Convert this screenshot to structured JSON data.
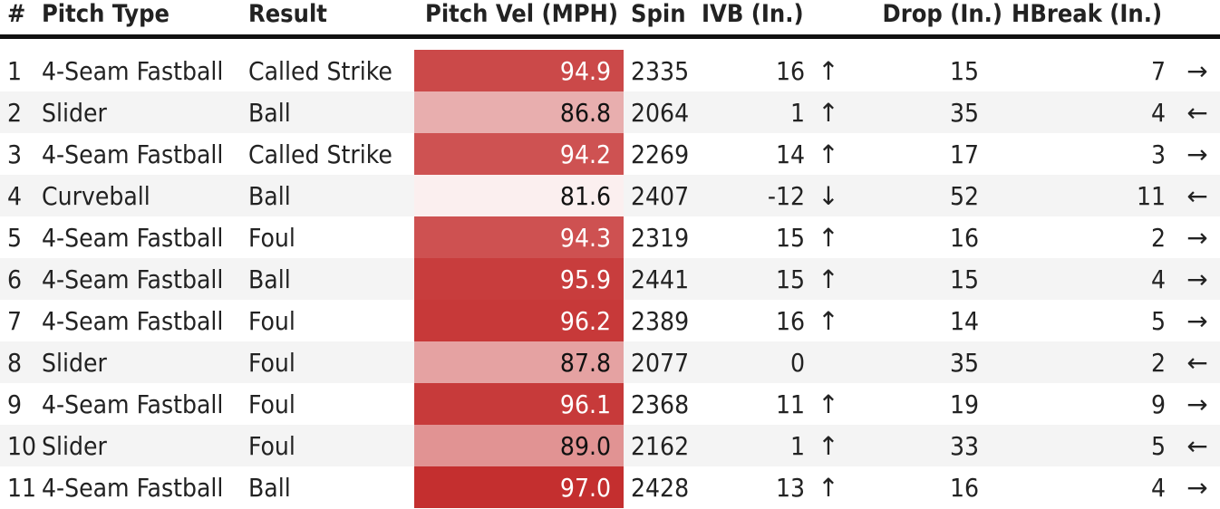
{
  "table": {
    "headers": {
      "num": "#",
      "pitch_type": "Pitch Type",
      "result": "Result",
      "velocity": "Pitch Vel (MPH)",
      "spin": "Spin",
      "ivb": "IVB (In.)",
      "drop": "Drop (In.)",
      "hbreak": "HBreak (In.)"
    },
    "velocity_color_scale": {
      "low_color": "#fbefef",
      "high_color": "#c42f2f"
    },
    "rows": [
      {
        "num": "1",
        "pitch_type": "4-Seam Fastball",
        "result": "Called Strike",
        "velocity": "94.9",
        "spin": "2335",
        "ivb": "16",
        "ivb_arrow": "↑",
        "drop": "15",
        "hbreak": "7",
        "hbreak_arrow": "→"
      },
      {
        "num": "2",
        "pitch_type": "Slider",
        "result": "Ball",
        "velocity": "86.8",
        "spin": "2064",
        "ivb": "1",
        "ivb_arrow": "↑",
        "drop": "35",
        "hbreak": "4",
        "hbreak_arrow": "←"
      },
      {
        "num": "3",
        "pitch_type": "4-Seam Fastball",
        "result": "Called Strike",
        "velocity": "94.2",
        "spin": "2269",
        "ivb": "14",
        "ivb_arrow": "↑",
        "drop": "17",
        "hbreak": "3",
        "hbreak_arrow": "→"
      },
      {
        "num": "4",
        "pitch_type": "Curveball",
        "result": "Ball",
        "velocity": "81.6",
        "spin": "2407",
        "ivb": "-12",
        "ivb_arrow": "↓",
        "drop": "52",
        "hbreak": "11",
        "hbreak_arrow": "←"
      },
      {
        "num": "5",
        "pitch_type": "4-Seam Fastball",
        "result": "Foul",
        "velocity": "94.3",
        "spin": "2319",
        "ivb": "15",
        "ivb_arrow": "↑",
        "drop": "16",
        "hbreak": "2",
        "hbreak_arrow": "→"
      },
      {
        "num": "6",
        "pitch_type": "4-Seam Fastball",
        "result": "Ball",
        "velocity": "95.9",
        "spin": "2441",
        "ivb": "15",
        "ivb_arrow": "↑",
        "drop": "15",
        "hbreak": "4",
        "hbreak_arrow": "→"
      },
      {
        "num": "7",
        "pitch_type": "4-Seam Fastball",
        "result": "Foul",
        "velocity": "96.2",
        "spin": "2389",
        "ivb": "16",
        "ivb_arrow": "↑",
        "drop": "14",
        "hbreak": "5",
        "hbreak_arrow": "→"
      },
      {
        "num": "8",
        "pitch_type": "Slider",
        "result": "Foul",
        "velocity": "87.8",
        "spin": "2077",
        "ivb": "0",
        "ivb_arrow": "",
        "drop": "35",
        "hbreak": "2",
        "hbreak_arrow": "←"
      },
      {
        "num": "9",
        "pitch_type": "4-Seam Fastball",
        "result": "Foul",
        "velocity": "96.1",
        "spin": "2368",
        "ivb": "11",
        "ivb_arrow": "↑",
        "drop": "19",
        "hbreak": "9",
        "hbreak_arrow": "→"
      },
      {
        "num": "10",
        "pitch_type": "Slider",
        "result": "Foul",
        "velocity": "89.0",
        "spin": "2162",
        "ivb": "1",
        "ivb_arrow": "↑",
        "drop": "33",
        "hbreak": "5",
        "hbreak_arrow": "←"
      },
      {
        "num": "11",
        "pitch_type": "4-Seam Fastball",
        "result": "Ball",
        "velocity": "97.0",
        "spin": "2428",
        "ivb": "13",
        "ivb_arrow": "↑",
        "drop": "16",
        "hbreak": "4",
        "hbreak_arrow": "→"
      }
    ]
  }
}
